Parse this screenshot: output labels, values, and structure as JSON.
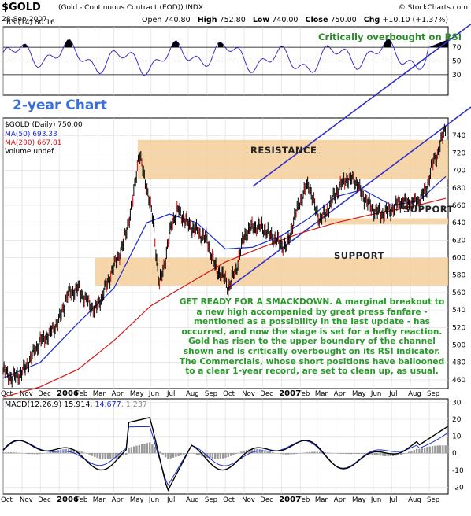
{
  "header": {
    "ticker": "$GOLD",
    "subtitle": "(Gold - Continuous Contract (EOD))  INDX",
    "date": "28-Sep-2007",
    "copyright": "© StockCharts.com",
    "open_label": "Open",
    "open": "740.80",
    "high_label": "High",
    "high": "752.80",
    "low_label": "Low",
    "low": "740.00",
    "close_label": "Close",
    "close": "750.00",
    "chg_label": "Chg",
    "chg": "+10.10 (+1.37%)"
  },
  "rsi_panel": {
    "label": "RSI(14) 80.16",
    "note": "Critically overbought on RSI",
    "ticks": [
      "70",
      "50",
      "30"
    ]
  },
  "price_panel": {
    "title": "2-year Chart",
    "legend": [
      {
        "text": "$GOLD (Daily) 750.00",
        "color": "#000000"
      },
      {
        "text": "MA(50) 693.33",
        "color": "#1c2fd0"
      },
      {
        "text": "MA(200) 667.81",
        "color": "#d01818"
      },
      {
        "text": "Volume undef",
        "color": "#000000"
      }
    ],
    "resistance_label": "RESISTANCE",
    "support_label_1": "SUPPORT",
    "support_label_2": "SUPPORT",
    "commentary": "GET READY FOR A SMACKDOWN. A marginal breakout to a new high accompanied by great press fanfare - mentioned as a possibility in the last update - has occurred, and now the stage is set for a hefty reaction. Gold has risen to the upper boundary of the channel shown and is critically overbought on its RSI indicator. The Commercials, whose short positions have ballooned to a clear 1-year record, are set to clean up, as usual."
  },
  "macd_panel": {
    "label_main": "MACD(12,26,9) 15.914, ",
    "label_signal": "14.677",
    "label_hist": ", 1.237",
    "ticks": [
      "30",
      "20",
      "10",
      "0",
      "-10",
      "-20"
    ]
  },
  "x_axis": {
    "months": [
      "Oct",
      "Nov",
      "Dec",
      "2006",
      "Feb",
      "Mar",
      "Apr",
      "May",
      "Jun",
      "Jul",
      "Aug",
      "Sep",
      "Oct",
      "Nov",
      "Dec",
      "2007",
      "Feb",
      "Mar",
      "Apr",
      "May",
      "Jun",
      "Jul",
      "Aug",
      "Sep"
    ]
  },
  "chart_data": {
    "type": "line",
    "ylim": [
      450,
      760
    ],
    "yticks": [
      460,
      480,
      500,
      520,
      540,
      560,
      580,
      600,
      620,
      640,
      660,
      680,
      700,
      720,
      740
    ],
    "series": [
      {
        "name": "$GOLD",
        "x": [
          "2005-10-01",
          "2005-10-15",
          "2005-11-01",
          "2005-11-15",
          "2005-12-01",
          "2005-12-15",
          "2006-01-01",
          "2006-01-15",
          "2006-02-01",
          "2006-02-15",
          "2006-03-01",
          "2006-03-15",
          "2006-04-01",
          "2006-04-15",
          "2006-05-01",
          "2006-05-12",
          "2006-05-25",
          "2006-06-05",
          "2006-06-14",
          "2006-06-25",
          "2006-07-05",
          "2006-07-15",
          "2006-08-01",
          "2006-08-15",
          "2006-09-01",
          "2006-09-15",
          "2006-10-01",
          "2006-10-06",
          "2006-10-20",
          "2006-11-01",
          "2006-11-15",
          "2006-12-01",
          "2006-12-15",
          "2007-01-01",
          "2007-01-10",
          "2007-01-20",
          "2007-02-01",
          "2007-02-15",
          "2007-02-26",
          "2007-03-05",
          "2007-03-15",
          "2007-04-01",
          "2007-04-15",
          "2007-05-01",
          "2007-05-15",
          "2007-06-01",
          "2007-06-15",
          "2007-07-01",
          "2007-07-15",
          "2007-08-01",
          "2007-08-15",
          "2007-08-28",
          "2007-09-05",
          "2007-09-15",
          "2007-09-28"
        ],
        "values": [
          470,
          462,
          468,
          484,
          505,
          512,
          528,
          558,
          565,
          550,
          540,
          560,
          590,
          612,
          660,
          720,
          680,
          640,
          568,
          600,
          640,
          655,
          638,
          630,
          620,
          588,
          575,
          565,
          590,
          625,
          635,
          635,
          625,
          615,
          612,
          640,
          665,
          685,
          655,
          645,
          650,
          675,
          690,
          690,
          670,
          655,
          650,
          655,
          665,
          662,
          665,
          680,
          705,
          720,
          750
        ]
      },
      {
        "name": "MA(50)",
        "x": [
          "2005-10-01",
          "2005-12-01",
          "2006-02-01",
          "2006-04-01",
          "2006-05-25",
          "2006-07-01",
          "2006-08-15",
          "2006-10-01",
          "2006-11-15",
          "2007-01-01",
          "2007-02-15",
          "2007-04-01",
          "2007-05-15",
          "2007-07-01",
          "2007-08-15",
          "2007-09-28"
        ],
        "values": [
          462,
          480,
          525,
          565,
          640,
          650,
          640,
          610,
          612,
          625,
          645,
          670,
          678,
          660,
          665,
          693
        ]
      },
      {
        "name": "MA(200)",
        "x": [
          "2005-10-01",
          "2005-12-01",
          "2006-02-01",
          "2006-04-01",
          "2006-06-01",
          "2006-08-01",
          "2006-10-01",
          "2006-12-01",
          "2007-02-01",
          "2007-04-01",
          "2007-06-01",
          "2007-08-01",
          "2007-09-28"
        ],
        "values": [
          440,
          452,
          472,
          505,
          545,
          570,
          595,
          612,
          628,
          640,
          650,
          658,
          668
        ]
      }
    ],
    "zones": [
      {
        "label": "RESISTANCE",
        "from": 690,
        "to": 735
      },
      {
        "label": "SUPPORT",
        "from": 638,
        "to": 645
      },
      {
        "label": "SUPPORT",
        "from": 568,
        "to": 600
      }
    ]
  },
  "colors": {
    "price": "#000000",
    "ma50": "#1c2fd0",
    "ma200": "#d01818",
    "zone": "#f5cf9a",
    "channel": "#3030c8",
    "rsi": "#4030c0",
    "text_green": "#2a9a2a",
    "title_blue": "#3a6fd8"
  }
}
